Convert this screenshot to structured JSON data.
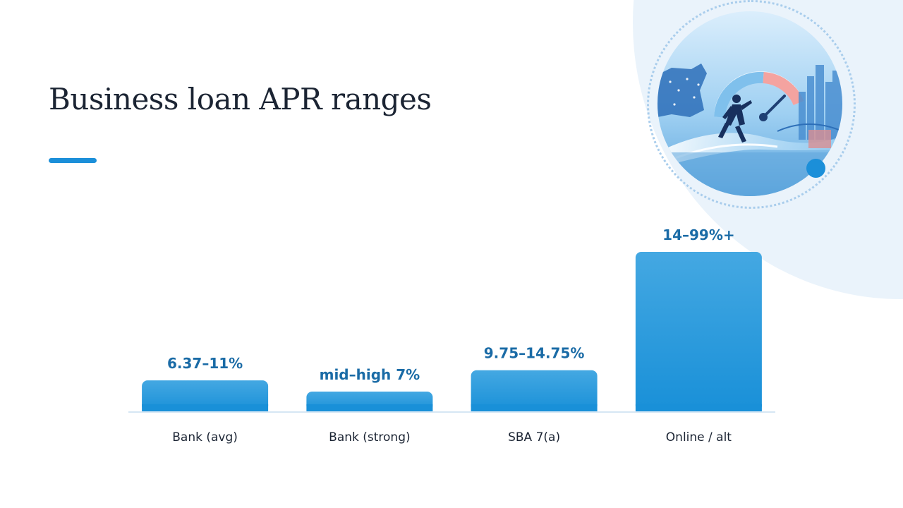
{
  "slide": {
    "title": "Business loan APR ranges"
  },
  "colors": {
    "bar_top": "#44a8e2",
    "bar_bottom": "#1990d8",
    "value_label": "#1a6ba6",
    "axis": "#d6e7f4",
    "accent": "#1b8fd9",
    "background_blob": "#eaf3fb"
  },
  "illustration": {
    "icon": "business-speed-illustration"
  },
  "chart_data": {
    "type": "bar",
    "categories": [
      "Bank (avg)",
      "Bank (strong)",
      "SBA 7(a)",
      "Online / alt"
    ],
    "value_labels": [
      "6.37–11%",
      "mid–high 7%",
      "9.75–14.75%",
      "14–99%+"
    ],
    "values": [
      11,
      7.5,
      14.75,
      99
    ],
    "title": "",
    "xlabel": "",
    "ylabel": "",
    "ylim": [
      0,
      100
    ],
    "grid": false,
    "legend": "none"
  }
}
